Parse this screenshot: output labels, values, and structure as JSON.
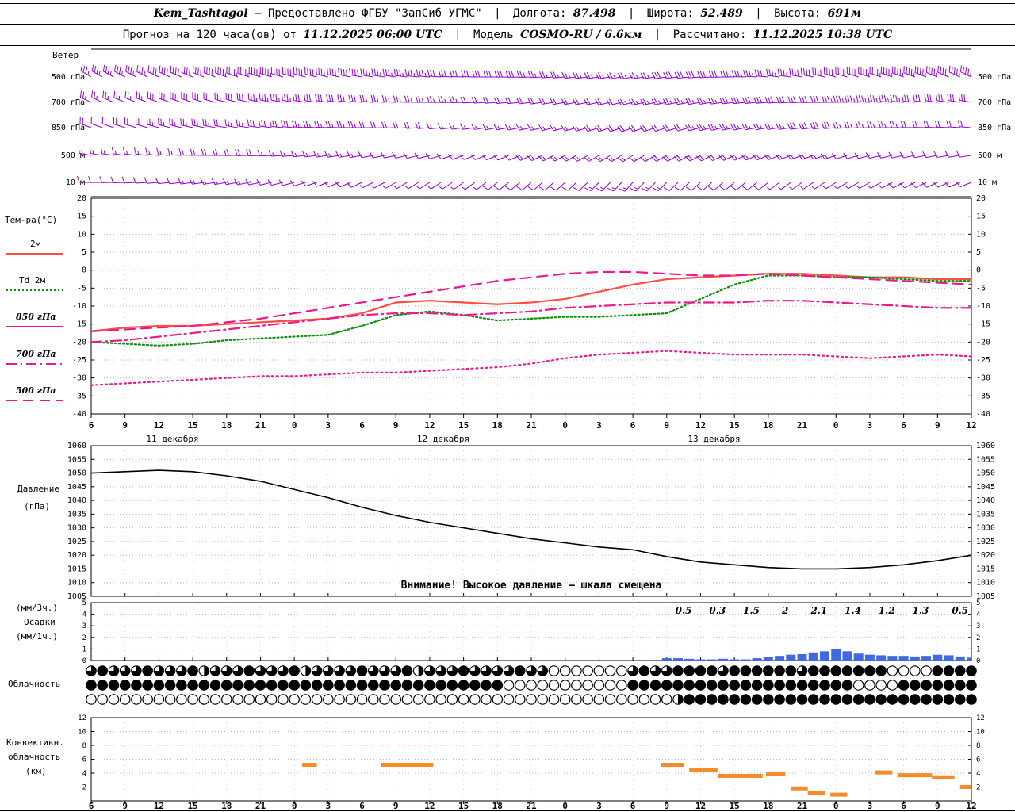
{
  "header": {
    "station": "Kem_Tashtagol",
    "provider": "— Предоставлено ФГБУ \"ЗапСиб УГМС\"",
    "sep": "|",
    "lon_label": "Долгота:",
    "lon": "87.498",
    "lat_label": "Широта:",
    "lat": "52.489",
    "alt_label": "Высота:",
    "alt": "691м",
    "line2_prefix": "Прогноз на 120 часа(ов) от",
    "run": "11.12.2025 06:00 UTC",
    "model_label": "Модель",
    "model": "COSMO-RU / 6.6км",
    "calc_label": "Рассчитано:",
    "calc": "11.12.2025 10:38 UTC"
  },
  "axes": {
    "hours": [
      "6",
      "9",
      "12",
      "15",
      "18",
      "21",
      "0",
      "3",
      "6",
      "9",
      "12",
      "15",
      "18",
      "21",
      "0",
      "3",
      "6",
      "9",
      "12",
      "15",
      "18",
      "21",
      "0",
      "3",
      "6",
      "9",
      "12"
    ],
    "dates": [
      "11 декабря",
      "12 декабря",
      "13 декабря"
    ],
    "temp_ticks": [
      20,
      15,
      10,
      5,
      0,
      -5,
      -10,
      -15,
      -20,
      -25,
      -30,
      -35,
      -40
    ],
    "pressure_ticks": [
      1060,
      1055,
      1050,
      1045,
      1040,
      1035,
      1030,
      1025,
      1020,
      1015,
      1010,
      1005
    ],
    "precip_ticks": [
      5,
      4,
      3,
      2,
      1,
      0
    ],
    "conv_ticks": [
      12,
      10,
      8,
      6,
      4,
      2
    ]
  },
  "panels": {
    "wind": {
      "title": "Ветер"
    },
    "temp": {
      "title": "Тем-ра(°C)",
      "legend": [
        {
          "label": "2м"
        },
        {
          "label": "Td 2м"
        },
        {
          "label": "850 гПа"
        },
        {
          "label": "700 гПа"
        },
        {
          "label": "500 гПа"
        }
      ]
    },
    "pressure": {
      "title1": "Давление",
      "title2": "(гПа)",
      "warning": "Внимание! Высокое давление — шкала смещена"
    },
    "precip": {
      "label1": "(мм/3ч.)",
      "label2": "Осадки",
      "label3": "(мм/1ч.)"
    },
    "cloud": {
      "title": "Облачность"
    },
    "conv": {
      "title1": "Конвективн.",
      "title2": "облачность",
      "title3": "(км)"
    }
  },
  "colors": {
    "wind": "#9400d3",
    "t2m": "#ff4f42",
    "td": "#0f8f0f",
    "upper": "#ea1a8c",
    "pressure": "#000000",
    "precip_bar": "#4169e1",
    "conv": "#f58c28",
    "zero_line": "#9090ff",
    "grid": "#b5b5b5"
  },
  "chart_data": [
    {
      "type": "wind-barbs",
      "title": "Ветер",
      "levels": [
        "500 гПа",
        "700 гПа",
        "850 гПа",
        "500 м",
        "10 м"
      ],
      "x_tick_labels": [
        "6",
        "9",
        "12",
        "15",
        "18",
        "21",
        "0",
        "3",
        "6",
        "9",
        "12",
        "15",
        "18",
        "21",
        "0",
        "3",
        "6",
        "9",
        "12",
        "15",
        "18",
        "21",
        "0",
        "3",
        "6",
        "9",
        "12"
      ],
      "series": [
        {
          "level": "500 гПа",
          "dir_deg": [
            300,
            298,
            295,
            292,
            290,
            288,
            285,
            283,
            280,
            278,
            275,
            272,
            270,
            268,
            265,
            262,
            260,
            262,
            265,
            270,
            275,
            280,
            285,
            288,
            290,
            292,
            295
          ],
          "speed_kt": [
            35,
            35,
            40,
            40,
            45,
            45,
            45,
            40,
            40,
            35,
            35,
            30,
            30,
            30,
            25,
            25,
            25,
            30,
            30,
            35,
            35,
            40,
            40,
            45,
            45,
            45,
            50
          ]
        },
        {
          "level": "700 гПа",
          "dir_deg": [
            295,
            293,
            290,
            288,
            285,
            283,
            280,
            278,
            275,
            273,
            270,
            268,
            265,
            263,
            260,
            258,
            255,
            258,
            260,
            263,
            265,
            268,
            270,
            273,
            275,
            278,
            280
          ],
          "speed_kt": [
            25,
            25,
            30,
            30,
            30,
            35,
            35,
            30,
            30,
            25,
            25,
            25,
            20,
            20,
            20,
            20,
            25,
            25,
            25,
            30,
            30,
            30,
            35,
            35,
            35,
            30,
            30
          ]
        },
        {
          "level": "850 гПа",
          "dir_deg": [
            290,
            288,
            285,
            283,
            280,
            278,
            275,
            272,
            270,
            268,
            265,
            262,
            260,
            258,
            255,
            252,
            250,
            252,
            255,
            258,
            260,
            262,
            265,
            268,
            270,
            272,
            275
          ],
          "speed_kt": [
            20,
            20,
            25,
            25,
            25,
            30,
            30,
            25,
            25,
            20,
            20,
            15,
            15,
            15,
            15,
            20,
            20,
            20,
            25,
            25,
            25,
            30,
            30,
            25,
            25,
            20,
            20
          ]
        },
        {
          "level": "500 м",
          "dir_deg": [
            280,
            278,
            275,
            272,
            270,
            268,
            265,
            262,
            260,
            258,
            255,
            250,
            248,
            245,
            242,
            240,
            238,
            240,
            242,
            245,
            248,
            250,
            252,
            255,
            258,
            260,
            262
          ],
          "speed_kt": [
            15,
            15,
            15,
            20,
            20,
            20,
            15,
            15,
            15,
            10,
            10,
            10,
            10,
            15,
            15,
            15,
            15,
            20,
            20,
            20,
            15,
            15,
            15,
            10,
            10,
            10,
            10
          ]
        },
        {
          "level": "10 м",
          "dir_deg": [
            270,
            268,
            265,
            262,
            260,
            258,
            255,
            250,
            245,
            240,
            238,
            235,
            232,
            230,
            228,
            225,
            222,
            225,
            228,
            230,
            232,
            235,
            238,
            240,
            242,
            245,
            248
          ],
          "speed_kt": [
            10,
            10,
            10,
            15,
            15,
            15,
            10,
            10,
            10,
            5,
            5,
            5,
            10,
            10,
            10,
            15,
            15,
            15,
            10,
            10,
            10,
            5,
            5,
            5,
            10,
            10,
            10
          ]
        }
      ]
    },
    {
      "type": "line",
      "title": "Тем-ра(°C)",
      "ylabel": "°C",
      "ylim": [
        -40,
        20
      ],
      "x_tick_labels": [
        "6",
        "9",
        "12",
        "15",
        "18",
        "21",
        "0",
        "3",
        "6",
        "9",
        "12",
        "15",
        "18",
        "21",
        "0",
        "3",
        "6",
        "9",
        "12",
        "15",
        "18",
        "21",
        "0",
        "3",
        "6",
        "9",
        "12"
      ],
      "date_labels": [
        "11 декабря",
        "12 декабря",
        "13 декабря"
      ],
      "series": [
        {
          "name": "2м",
          "style": "solid",
          "color_key": "t2m",
          "values": [
            -17,
            -16,
            -15.5,
            -15.5,
            -15,
            -14.5,
            -14,
            -13.5,
            -12,
            -9,
            -8.5,
            -9,
            -9.5,
            -9,
            -8,
            -6,
            -4,
            -2.5,
            -2,
            -1.5,
            -1,
            -1,
            -1.5,
            -2,
            -2,
            -2.5,
            -2.5
          ]
        },
        {
          "name": "Td 2м",
          "style": "dotted",
          "color_key": "td",
          "values": [
            -20,
            -20.5,
            -21,
            -20.5,
            -19.5,
            -19,
            -18.5,
            -18,
            -15.5,
            -12.5,
            -11.5,
            -12.5,
            -14,
            -13.5,
            -13,
            -13,
            -12.5,
            -12,
            -8,
            -4,
            -1.5,
            -1.5,
            -2,
            -2,
            -2.5,
            -3,
            -3
          ]
        },
        {
          "name": "850 гПа",
          "style": "dash",
          "color_key": "upper",
          "values": [
            -17,
            -16.5,
            -16,
            -15.5,
            -14.5,
            -13.5,
            -12,
            -10.5,
            -9,
            -7.5,
            -6,
            -4.5,
            -3,
            -2,
            -1,
            -0.5,
            -0.5,
            -1,
            -1.5,
            -1.5,
            -1,
            -1.5,
            -2,
            -2.5,
            -3,
            -3.5,
            -4
          ]
        },
        {
          "name": "700 гПа",
          "style": "dashdot",
          "color_key": "upper",
          "values": [
            -20,
            -19.5,
            -18.5,
            -17.5,
            -16.5,
            -15.5,
            -14.5,
            -13.5,
            -12.5,
            -12,
            -12,
            -12.5,
            -12,
            -11.5,
            -10.5,
            -10,
            -9.5,
            -9,
            -9,
            -9,
            -8.5,
            -8.5,
            -9,
            -9.5,
            -10,
            -10.5,
            -10.5
          ]
        },
        {
          "name": "500 гПа",
          "style": "dotted2",
          "color_key": "upper",
          "values": [
            -32,
            -31.5,
            -31,
            -30.5,
            -30,
            -29.5,
            -29.5,
            -29,
            -28.5,
            -28.5,
            -28,
            -27.5,
            -27,
            -26,
            -24.5,
            -23.5,
            -23,
            -22.5,
            -23,
            -23.5,
            -23.5,
            -23.5,
            -24,
            -24.5,
            -24,
            -23.5,
            -24
          ]
        }
      ]
    },
    {
      "type": "line",
      "title": "Давление (гПа)",
      "ylim": [
        1005,
        1060
      ],
      "note": "Внимание! Высокое давление — шкала смещена",
      "values": [
        1050,
        1050.5,
        1051,
        1050.5,
        1049,
        1047,
        1044,
        1041,
        1037.5,
        1034.5,
        1032,
        1030,
        1028,
        1026,
        1024.5,
        1023,
        1022,
        1019.5,
        1017.5,
        1016.5,
        1015.5,
        1015,
        1015,
        1015.5,
        1016.5,
        1018,
        1020
      ]
    },
    {
      "type": "bar",
      "title": "Осадки (мм/3ч. и мм/1ч.)",
      "ylim": [
        0,
        5
      ],
      "amounts_3h": [
        {
          "h": 52.5,
          "label": "0.5"
        },
        {
          "h": 55.5,
          "label": "0.3"
        },
        {
          "h": 58.5,
          "label": "1.5"
        },
        {
          "h": 61.5,
          "label": "2"
        },
        {
          "h": 64.5,
          "label": "2.1"
        },
        {
          "h": 67.5,
          "label": "1.4"
        },
        {
          "h": 70.5,
          "label": "1.2"
        },
        {
          "h": 73.5,
          "label": "1.3"
        },
        {
          "h": 77,
          "label": "0.5"
        }
      ],
      "hourly": {
        "start_h": 51,
        "values": [
          0.2,
          0.2,
          0.15,
          0.1,
          0.1,
          0.15,
          0.1,
          0.1,
          0.2,
          0.3,
          0.4,
          0.5,
          0.55,
          0.7,
          0.8,
          1.0,
          0.8,
          0.6,
          0.5,
          0.45,
          0.4,
          0.4,
          0.35,
          0.4,
          0.5,
          0.45,
          0.35,
          0.25
        ]
      }
    },
    {
      "type": "symbols",
      "title": "Облачность",
      "encoding": "0=ясно, 1=1/4, 2=1/2, 3=3/4, 4=сплошная (по часам)",
      "rows": [
        [
          "3433343334",
          "2333433342",
          "3333433342",
          "3334333",
          "3433",
          "0000000",
          "34334",
          "444344444434444444",
          "0000",
          "4444"
        ],
        [
          "4444444444",
          "4444444444",
          "4444444444",
          "4444444",
          "00000000000",
          "4444444444",
          "4444444444",
          "0000",
          "4444444"
        ],
        [
          "0000000000",
          "0000000000",
          "0000000000",
          "0000000000",
          "0000000000",
          "00",
          "2",
          "4444444444",
          "4444444444",
          "444444"
        ]
      ]
    },
    {
      "type": "bar",
      "title": "Конвективная облачность (км)",
      "ylim": [
        0,
        12
      ],
      "segments": [
        {
          "h1": 18.7,
          "h2": 20,
          "km": 5.2
        },
        {
          "h1": 25.7,
          "h2": 30.3,
          "km": 5.2
        },
        {
          "h1": 50.5,
          "h2": 52.5,
          "km": 5.2
        },
        {
          "h1": 53,
          "h2": 55.5,
          "km": 4.4
        },
        {
          "h1": 55.5,
          "h2": 59.5,
          "km": 3.6
        },
        {
          "h1": 59.8,
          "h2": 61.5,
          "km": 3.9
        },
        {
          "h1": 62,
          "h2": 63.5,
          "km": 1.8
        },
        {
          "h1": 63.5,
          "h2": 65,
          "km": 1.2
        },
        {
          "h1": 65.5,
          "h2": 67,
          "km": 0.9
        },
        {
          "h1": 69.5,
          "h2": 71,
          "km": 4.1
        },
        {
          "h1": 71.5,
          "h2": 74.5,
          "km": 3.7
        },
        {
          "h1": 74.5,
          "h2": 76.5,
          "km": 3.4
        },
        {
          "h1": 77,
          "h2": 78,
          "km": 2.0
        }
      ]
    }
  ]
}
